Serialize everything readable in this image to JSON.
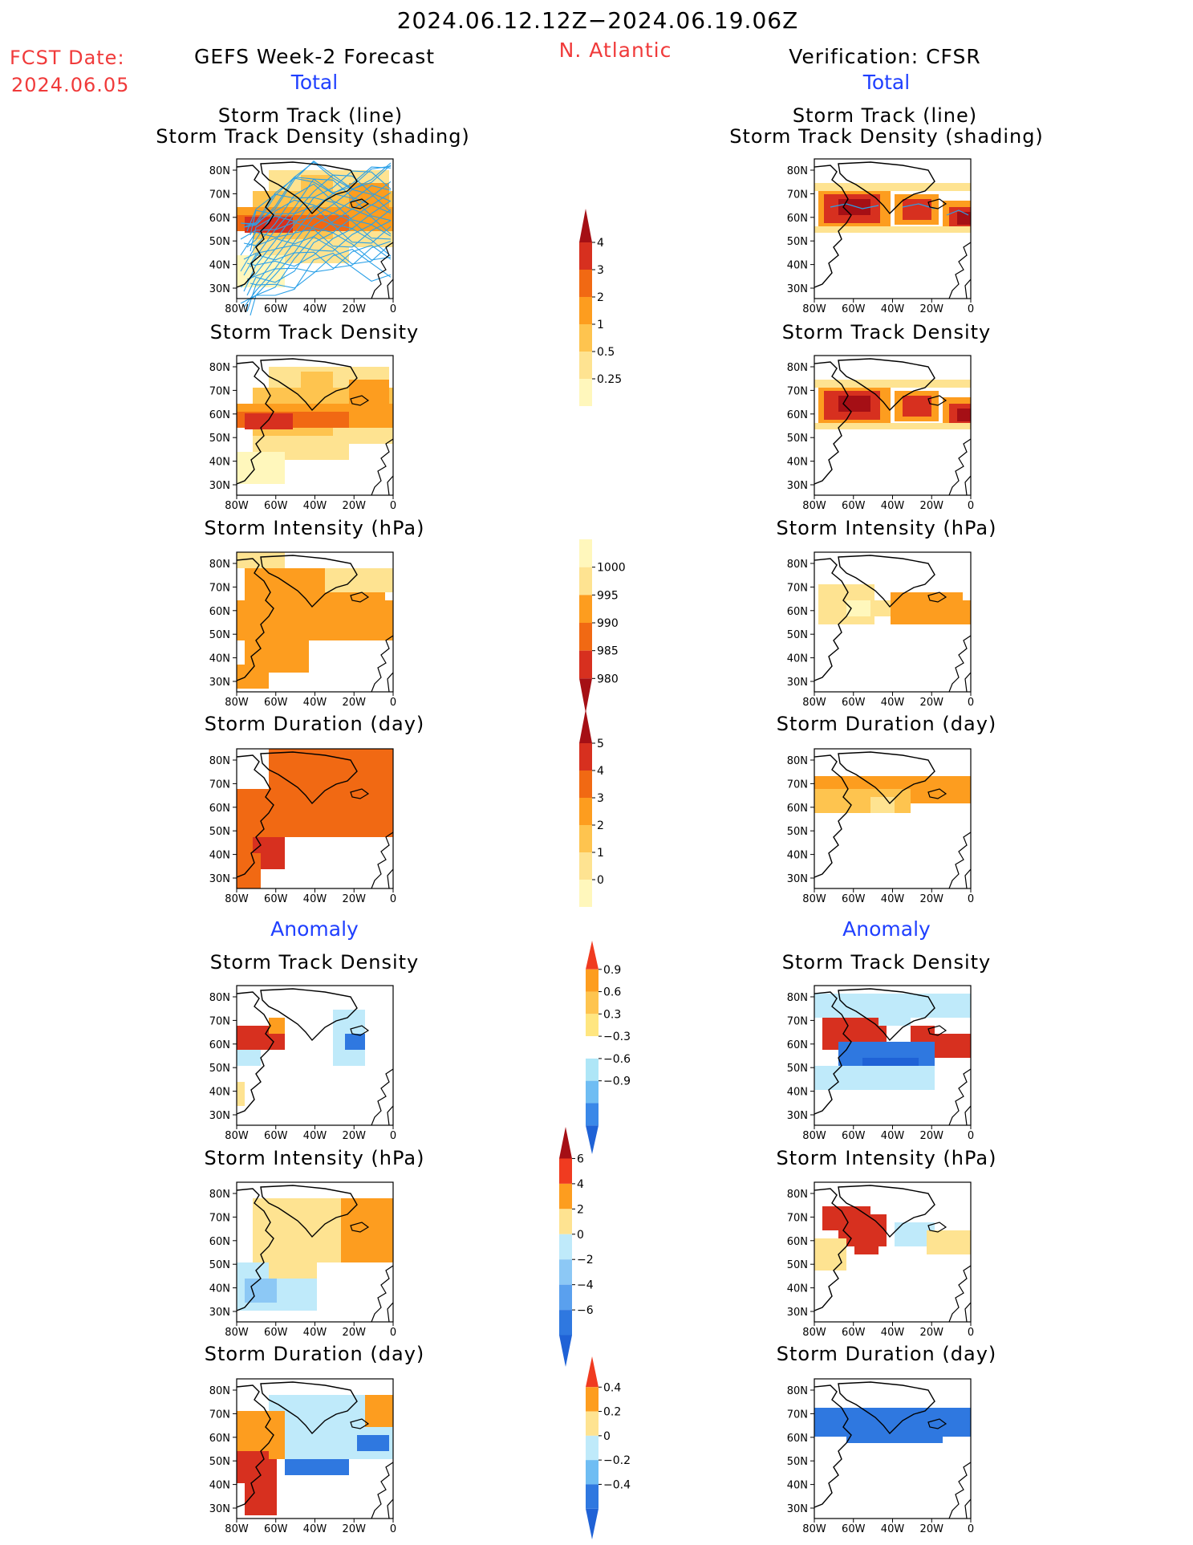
{
  "header": {
    "date_range": "2024.06.12.12Z−2024.06.19.06Z",
    "fcst_label": "FCST Date:",
    "fcst_date": "2024.06.05",
    "left_title": "GEFS Week-2 Forecast",
    "region": "N. Atlantic",
    "right_title": "Verification: CFSR"
  },
  "sections": {
    "total": "Total",
    "anomaly": "Anomaly"
  },
  "axes": {
    "lat_labels": [
      "80N",
      "70N",
      "60N",
      "50N",
      "40N",
      "30N"
    ],
    "lon_labels": [
      "80W",
      "60W",
      "40W",
      "20W",
      "0"
    ]
  },
  "panels": {
    "left": [
      {
        "title_line1": "Storm Track (line)",
        "title_line2": "Storm Track Density (shading)"
      },
      {
        "title_line1": "Storm Track Density"
      },
      {
        "title_line1": "Storm Intensity (hPa)"
      },
      {
        "title_line1": "Storm Duration (day)"
      },
      {
        "title_line1": "Storm Track Density"
      },
      {
        "title_line1": "Storm Intensity (hPa)"
      },
      {
        "title_line1": "Storm Duration (day)"
      }
    ],
    "right": [
      {
        "title_line1": "Storm Track (line)",
        "title_line2": "Storm Track Density (shading)"
      },
      {
        "title_line1": "Storm Track Density"
      },
      {
        "title_line1": "Storm Intensity (hPa)"
      },
      {
        "title_line1": "Storm Duration (day)"
      },
      {
        "title_line1": "Storm Track Density"
      },
      {
        "title_line1": "Storm Intensity (hPa)"
      },
      {
        "title_line1": "Storm Duration (day)"
      }
    ]
  },
  "colorbars": [
    {
      "name": "track-density",
      "labels": [
        "4",
        "3",
        "2",
        "1",
        "0.5",
        "0.25"
      ],
      "colors": [
        "#a50f15",
        "#d7301f",
        "#f16913",
        "#fd9d1f",
        "#fec44f",
        "#fee391",
        "#fff7bc"
      ]
    },
    {
      "name": "intensity",
      "labels": [
        "1000",
        "995",
        "990",
        "985",
        "980"
      ],
      "colors": [
        "#fff7bc",
        "#fee391",
        "#fd9d1f",
        "#f16913",
        "#d7301f",
        "#a50f15"
      ]
    },
    {
      "name": "duration",
      "labels": [
        "5",
        "4",
        "3",
        "2",
        "1",
        "0"
      ],
      "colors": [
        "#a50f15",
        "#d7301f",
        "#f16913",
        "#fd9d1f",
        "#fec44f",
        "#fee391",
        "#fff7bc"
      ]
    },
    {
      "name": "density-anomaly",
      "labels": [
        "0.9",
        "0.6",
        "0.3",
        "−0.3",
        "−0.6",
        "−0.9"
      ],
      "colors": [
        "#f03b20",
        "#fd9d1f",
        "#fec44f",
        "#ffe680",
        "#ffffff",
        "#aee6f7",
        "#6fbdf3",
        "#3a88e8",
        "#1f62d6"
      ]
    },
    {
      "name": "intensity-anomaly",
      "labels": [
        "6",
        "4",
        "2",
        "0",
        "−2",
        "−4",
        "−6"
      ],
      "colors": [
        "#a50f15",
        "#f03b20",
        "#fd9d1f",
        "#fee391",
        "#bfeafa",
        "#8cc8f5",
        "#5aa0ee",
        "#2f78e0",
        "#1f62d6"
      ]
    },
    {
      "name": "duration-anomaly",
      "labels": [
        "0.4",
        "0.2",
        "0",
        "−0.2",
        "−0.4"
      ],
      "colors": [
        "#f03b20",
        "#fd9d1f",
        "#fee391",
        "#bfeafa",
        "#6fbdf3",
        "#2f78e0",
        "#1f62d6"
      ]
    }
  ],
  "colors": {
    "title_red": "#f03a3a",
    "title_blue": "#1f3fff",
    "track_line": "#2aa0e8"
  }
}
